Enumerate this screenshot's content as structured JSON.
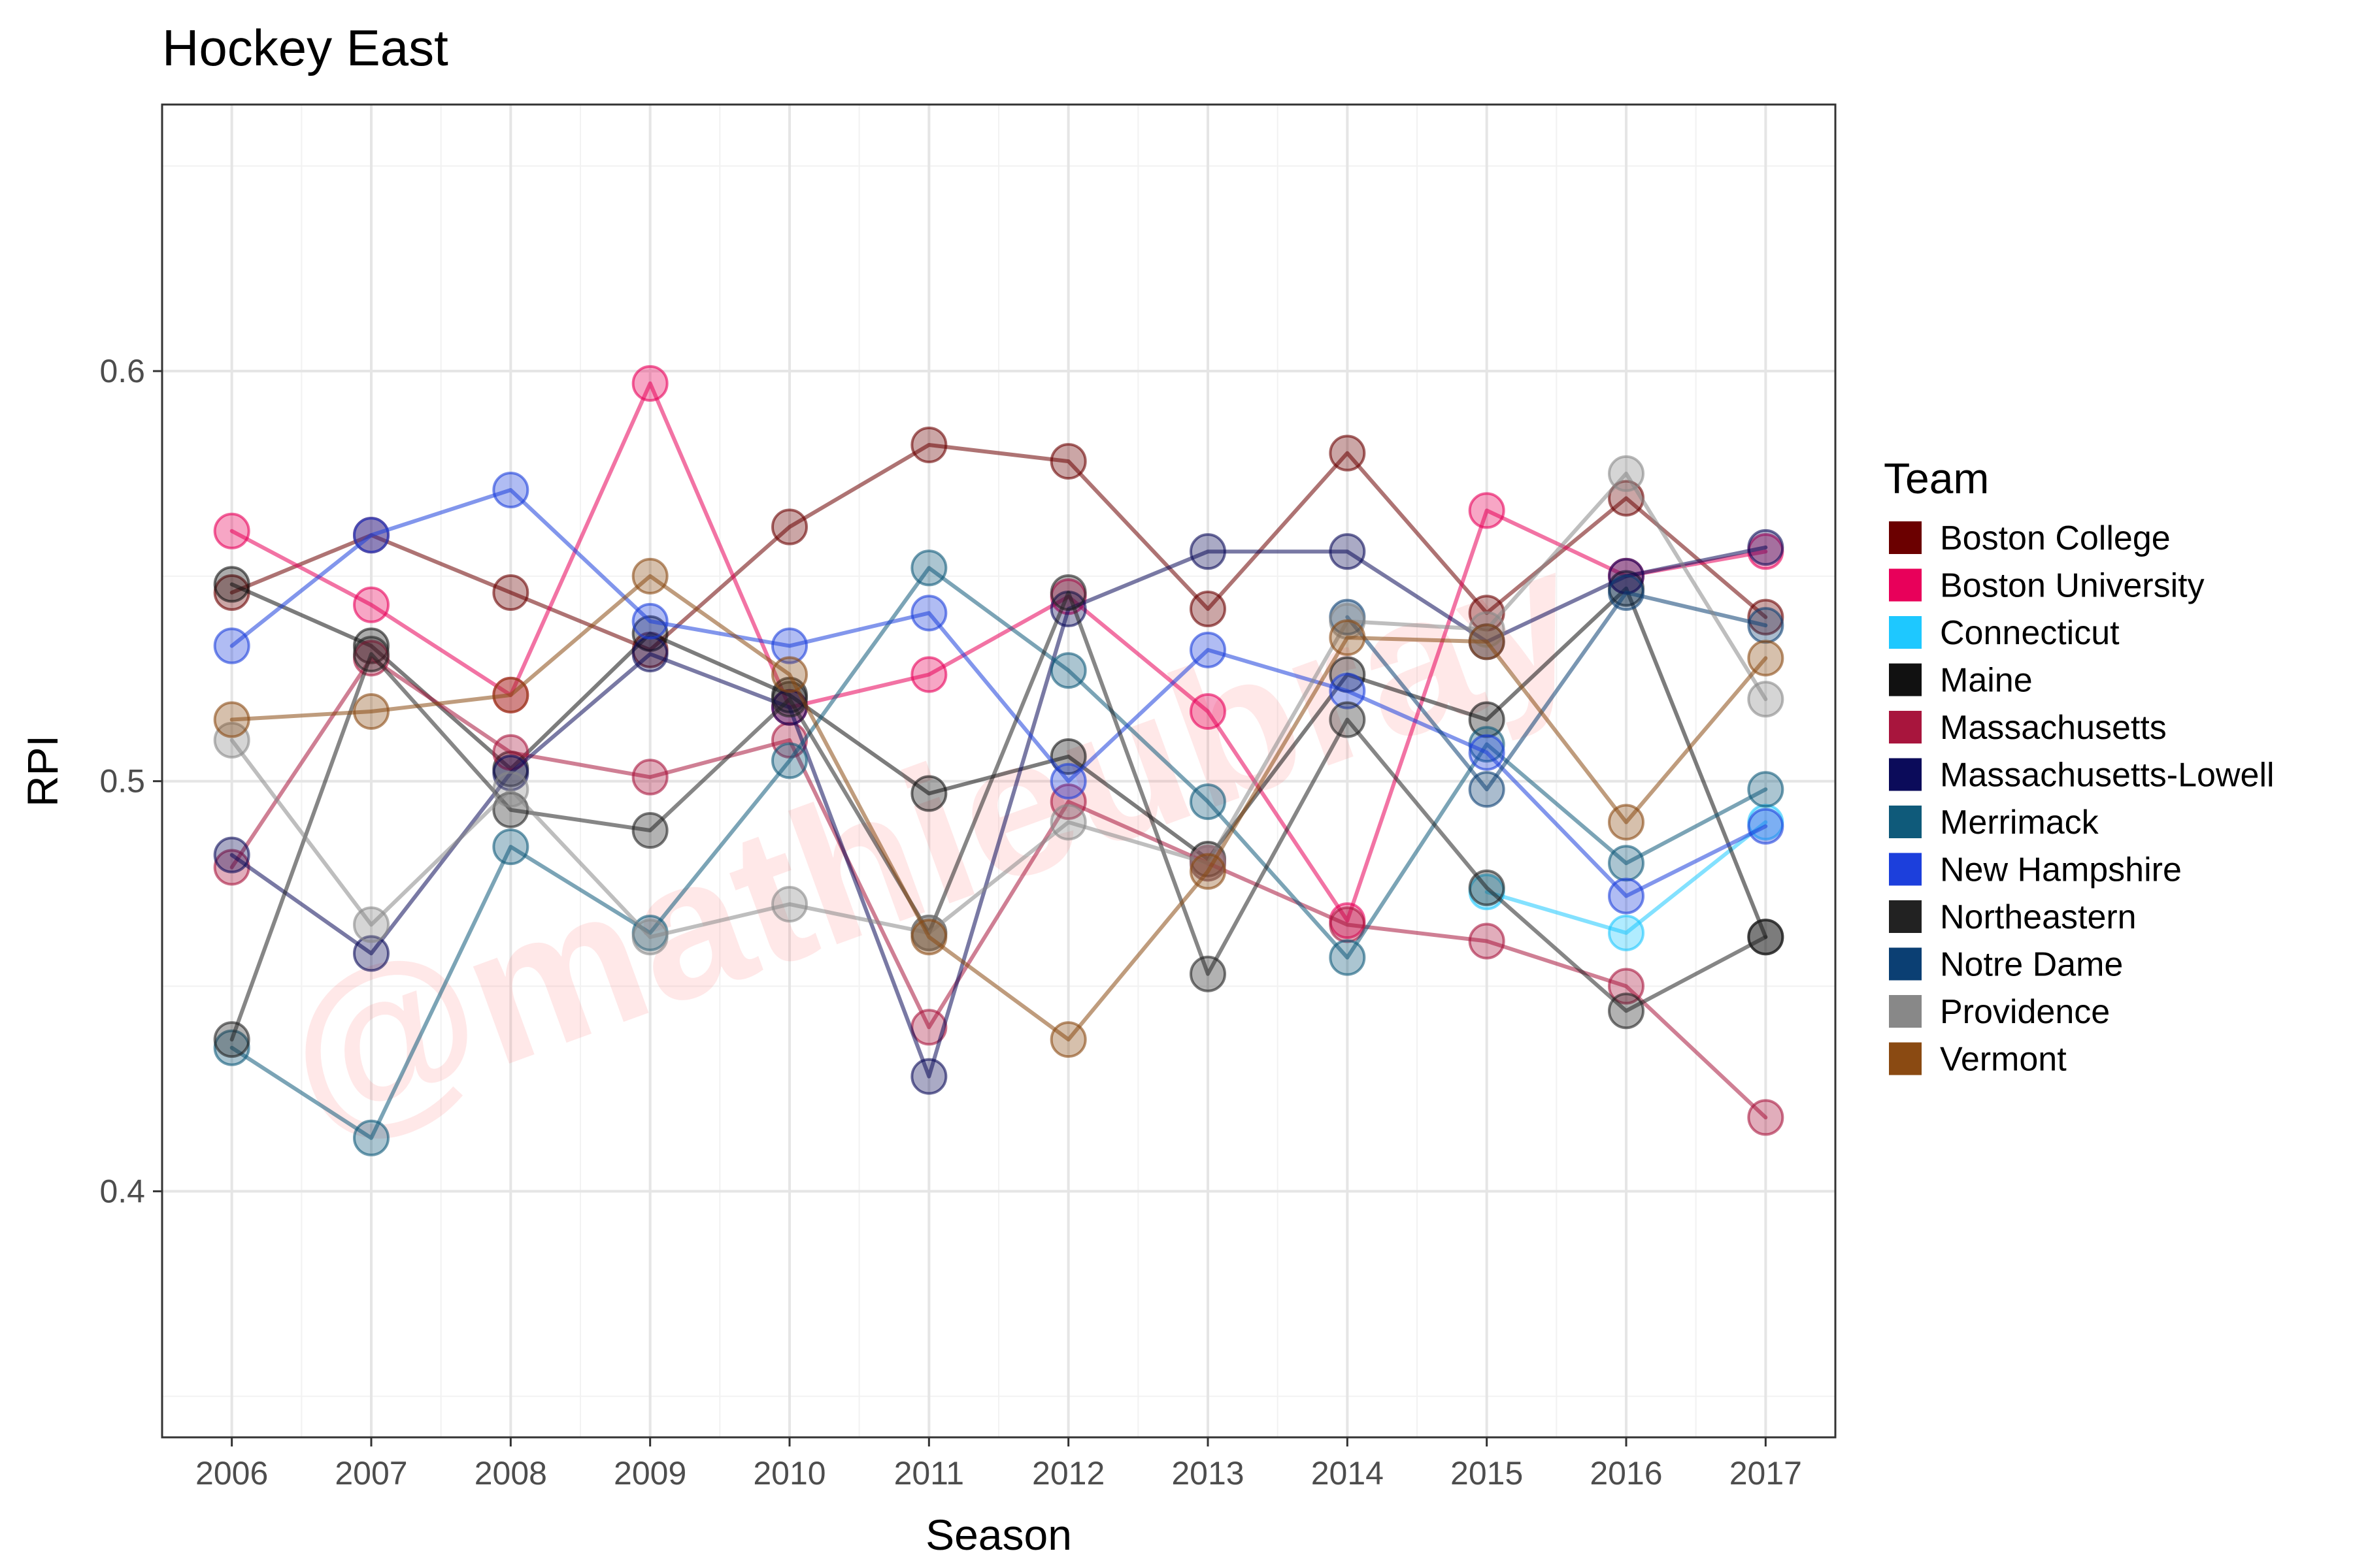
{
  "chart_data": {
    "type": "line",
    "title": "Hockey East",
    "xlabel": "Season",
    "ylabel": "RPI",
    "x": [
      2006,
      2007,
      2008,
      2009,
      2010,
      2011,
      2012,
      2013,
      2014,
      2015,
      2016,
      2017
    ],
    "x_tick_labels": [
      "2006",
      "2007",
      "2008",
      "2009",
      "2010",
      "2011",
      "2012",
      "2013",
      "2014",
      "2015",
      "2016",
      "2017"
    ],
    "y_ticks": [
      0.4,
      0.5,
      0.6
    ],
    "y_tick_labels": [
      "0.4",
      "0.5",
      "0.6"
    ],
    "xlim": [
      2005.5,
      2017.5
    ],
    "ylim": [
      0.34,
      0.665
    ],
    "grid": true,
    "legend_title": "Team",
    "legend_position": "right",
    "watermark": "@mathieubray",
    "series": [
      {
        "name": "Boston College",
        "color": "#6b0000",
        "values": [
          0.546,
          0.56,
          0.546,
          0.532,
          0.562,
          0.582,
          0.578,
          0.542,
          0.58,
          0.541,
          0.569,
          0.54
        ]
      },
      {
        "name": "Boston University",
        "color": "#e8005a",
        "values": [
          0.561,
          0.543,
          0.521,
          0.597,
          0.518,
          0.526,
          0.545,
          0.517,
          0.466,
          0.566,
          0.55,
          0.556
        ]
      },
      {
        "name": "Connecticut",
        "color": "#1ec8ff",
        "values": [
          null,
          null,
          null,
          null,
          null,
          null,
          null,
          null,
          null,
          0.473,
          0.463,
          0.49
        ]
      },
      {
        "name": "Maine",
        "color": "#111111",
        "values": [
          0.548,
          0.533,
          0.503,
          0.536,
          0.521,
          0.497,
          0.506,
          0.481,
          0.526,
          0.515,
          0.547,
          0.462
        ]
      },
      {
        "name": "Massachusetts",
        "color": "#a8153d",
        "values": [
          0.479,
          0.53,
          0.507,
          0.501,
          0.51,
          0.44,
          0.495,
          0.48,
          0.465,
          0.461,
          0.45,
          0.418
        ]
      },
      {
        "name": "Massachusetts-Lowell",
        "color": "#0b0b5a",
        "values": [
          0.482,
          0.458,
          0.502,
          0.531,
          0.518,
          0.428,
          0.542,
          0.556,
          0.556,
          0.534,
          0.55,
          0.557
        ]
      },
      {
        "name": "Merrimack",
        "color": "#0f5a7a",
        "values": [
          0.435,
          0.413,
          0.484,
          0.463,
          0.505,
          0.552,
          0.527,
          0.495,
          0.457,
          0.509,
          0.48,
          0.498
        ]
      },
      {
        "name": "New Hampshire",
        "color": "#1c3fdc",
        "values": [
          0.533,
          0.56,
          0.571,
          0.539,
          0.533,
          0.541,
          0.5,
          0.532,
          0.522,
          0.507,
          0.472,
          0.489
        ]
      },
      {
        "name": "Northeastern",
        "color": "#222222",
        "values": [
          0.437,
          0.531,
          0.493,
          0.488,
          0.52,
          0.463,
          0.546,
          0.453,
          0.515,
          0.474,
          0.444,
          0.462
        ]
      },
      {
        "name": "Notre Dame",
        "color": "#0b3f73",
        "values": [
          null,
          null,
          null,
          null,
          null,
          null,
          null,
          null,
          0.54,
          0.498,
          0.546,
          0.538
        ]
      },
      {
        "name": "Providence",
        "color": "#888888",
        "values": [
          0.51,
          0.465,
          0.498,
          0.462,
          0.47,
          0.463,
          0.49,
          0.48,
          0.539,
          0.537,
          0.575,
          0.52
        ]
      },
      {
        "name": "Vermont",
        "color": "#8a4a12",
        "values": [
          0.515,
          0.517,
          0.521,
          0.55,
          0.526,
          0.462,
          0.437,
          0.478,
          0.535,
          0.534,
          0.49,
          0.53
        ]
      }
    ]
  }
}
